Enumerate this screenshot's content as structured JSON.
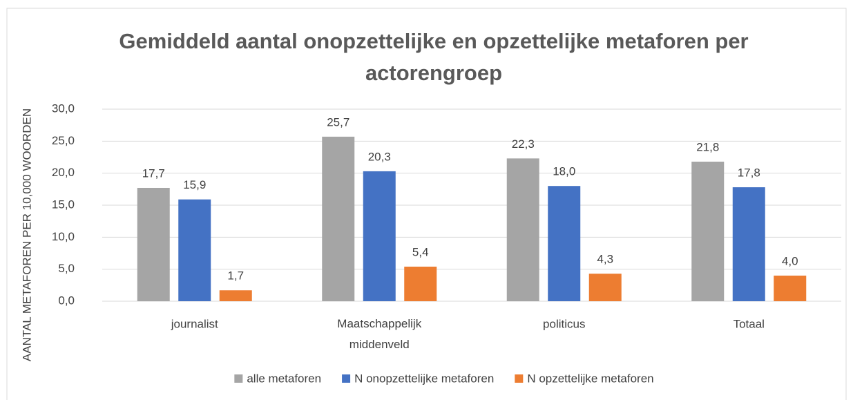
{
  "chart_data": {
    "type": "bar",
    "title": "Gemiddeld aantal onopzettelijke en opzettelijke metaforen per actorengroep",
    "y_label": "AANTAL METAFOREN PER 10,000 WOORDEN",
    "categories": [
      "journalist",
      "Maatschappelijk middenveld",
      "politicus",
      "Totaal"
    ],
    "series": [
      {
        "name": "alle metaforen",
        "color": "#a5a5a5",
        "values": [
          17.7,
          25.7,
          22.3,
          21.8
        ],
        "value_labels": [
          "17,7",
          "25,7",
          "22,3",
          "21,8"
        ]
      },
      {
        "name": "N onopzettelijke metaforen",
        "color": "#4472c4",
        "values": [
          15.9,
          20.3,
          18.0,
          17.8
        ],
        "value_labels": [
          "15,9",
          "20,3",
          "18,0",
          "17,8"
        ]
      },
      {
        "name": "N opzettelijke metaforen",
        "color": "#ed7d31",
        "values": [
          1.7,
          5.4,
          4.3,
          4.0
        ],
        "value_labels": [
          "1,7",
          "5,4",
          "4,3",
          "4,0"
        ]
      }
    ],
    "ylim": [
      0,
      30
    ],
    "yticks": [
      {
        "value": 0,
        "label": "0,0"
      },
      {
        "value": 5,
        "label": "5,0"
      },
      {
        "value": 10,
        "label": "10,0"
      },
      {
        "value": 15,
        "label": "15,0"
      },
      {
        "value": 20,
        "label": "20,0"
      },
      {
        "value": 25,
        "label": "25,0"
      },
      {
        "value": 30,
        "label": "30,0"
      }
    ],
    "grid": true,
    "legend": "bottom"
  }
}
